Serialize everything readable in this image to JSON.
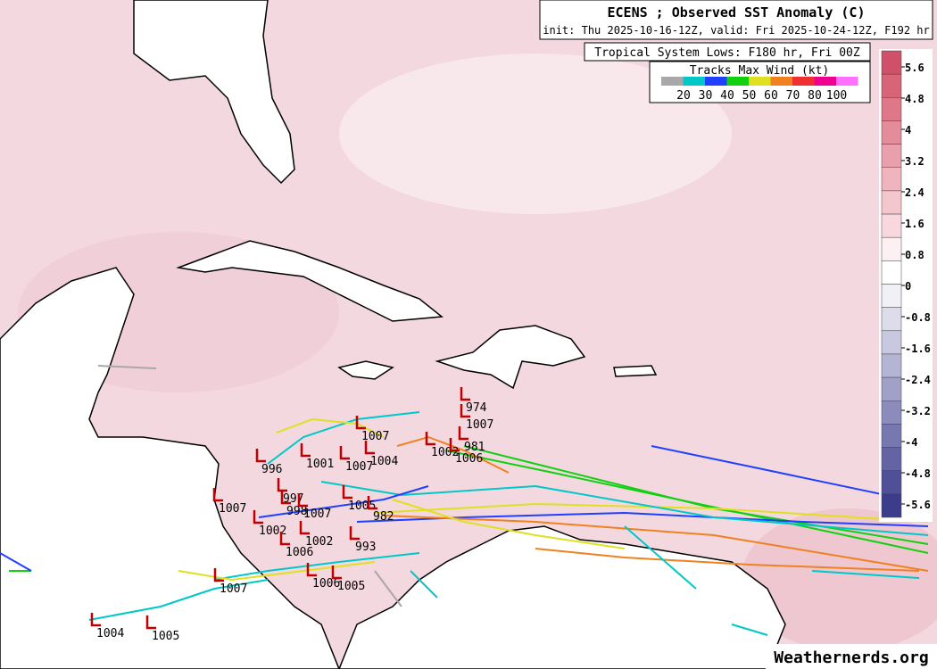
{
  "header": {
    "title": "ECENS ; Observed SST Anomaly (C)",
    "subtitle": "init: Thu 2025-10-16-12Z, valid: Fri 2025-10-24-12Z, F192 hr"
  },
  "lows_label": "Tropical System Lows: F180 hr, Fri 00Z",
  "wind_legend": {
    "title": "Tracks Max Wind (kt)",
    "labels": [
      "20",
      "30",
      "40",
      "50",
      "60",
      "70",
      "80",
      "100"
    ],
    "colors": [
      "#a8a8a8",
      "#00c8c8",
      "#2040ff",
      "#10d010",
      "#e0e020",
      "#f08020",
      "#f03030",
      "#f00090",
      "#ff70ff"
    ]
  },
  "colorbar": {
    "ticks": [
      5.6,
      4.8,
      4,
      3.2,
      2.4,
      1.6,
      0.8,
      0,
      -0.8,
      -1.6,
      -2.4,
      -3.2,
      -4,
      -4.8,
      -5.6
    ]
  },
  "lows": [
    "974",
    "1007",
    "1007",
    "996",
    "1001",
    "1007",
    "1004",
    "1002",
    "981",
    "1006",
    "1007",
    "997",
    "998",
    "1007",
    "1005",
    "982",
    "1002",
    "1002",
    "993",
    "1006",
    "1007",
    "1006",
    "1005",
    "1004",
    "1005"
  ],
  "watermark": "Weathernerds.org"
}
